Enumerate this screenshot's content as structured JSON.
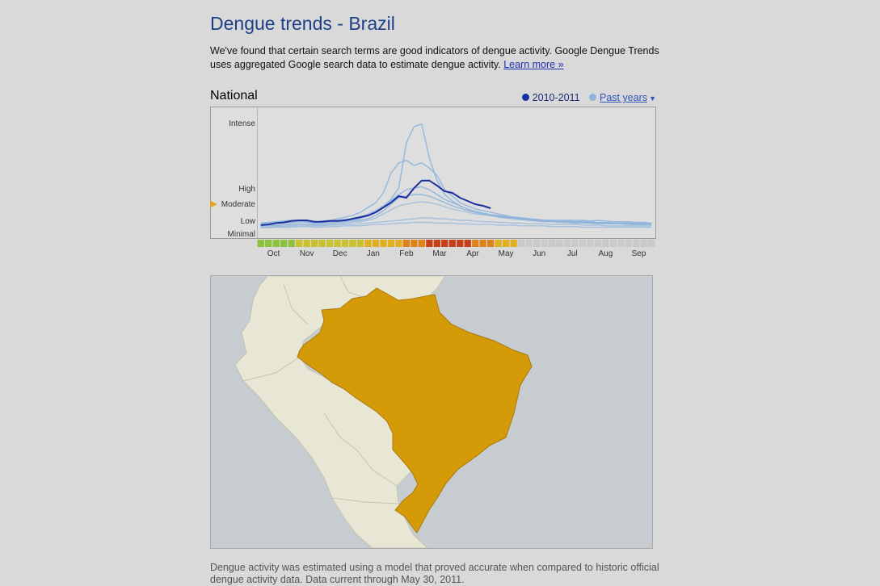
{
  "header": {
    "title": "Dengue trends - Brazil",
    "intro_text": "We've found that certain search terms are good indicators of dengue activity. Google Dengue Trends uses aggregated Google search data to estimate dengue activity.",
    "learn_more": "Learn more »"
  },
  "section": {
    "title": "National"
  },
  "legend": {
    "current_label": "2010-2011",
    "past_label": "Past years",
    "caret": "▼"
  },
  "colors": {
    "current": "#1a2f9e",
    "past": "#8fb4dc",
    "moderate_marker": "#e3a526",
    "brazil_fill": "#d59a08",
    "land": "#e8e6d4",
    "water": "#c6ccd0"
  },
  "chart_data": {
    "type": "line",
    "y_levels": [
      "Minimal",
      "Low",
      "Moderate",
      "High",
      "Intense"
    ],
    "x_months": [
      "Oct",
      "Nov",
      "Dec",
      "Jan",
      "Feb",
      "Mar",
      "Apr",
      "May",
      "Jun",
      "Jul",
      "Aug",
      "Sep"
    ],
    "ylim": [
      0,
      4.5
    ],
    "current_level_marker": "Moderate",
    "series_current": {
      "name": "2010-2011",
      "values": [
        0.65,
        0.7,
        0.8,
        0.85,
        0.95,
        1.0,
        1.0,
        0.9,
        0.9,
        0.95,
        0.95,
        1.0,
        1.1,
        1.2,
        1.3,
        1.5,
        1.8,
        2.1,
        2.5,
        2.4,
        3.0,
        3.3,
        3.3,
        3.1,
        2.8,
        2.7,
        2.4,
        2.2,
        2.0,
        1.9,
        1.75
      ]
    },
    "series_past": [
      {
        "values": [
          0.8,
          0.85,
          0.9,
          0.95,
          1.0,
          1.0,
          0.9,
          0.85,
          0.95,
          1.0,
          1.1,
          1.2,
          1.3,
          1.5,
          1.8,
          2.1,
          2.7,
          3.6,
          4.0,
          4.1,
          3.9,
          4.0,
          3.8,
          3.5,
          2.9,
          2.5,
          2.1,
          1.9,
          1.7,
          1.6,
          1.5,
          1.4,
          1.3,
          1.2,
          1.15,
          1.1,
          1.05,
          1.0,
          1.0,
          1.0,
          1.0,
          1.0,
          1.0,
          0.95,
          1.0,
          0.95,
          0.9,
          0.9,
          0.9,
          0.85,
          0.85,
          0.8
        ]
      },
      {
        "values": [
          0.8,
          0.85,
          0.9,
          0.9,
          0.95,
          0.95,
          0.9,
          0.85,
          0.9,
          0.95,
          1.0,
          1.05,
          1.1,
          1.2,
          1.4,
          1.6,
          1.9,
          2.3,
          3.0,
          4.8,
          5.45,
          5.55,
          4.2,
          3.3,
          2.6,
          2.2,
          1.9,
          1.7,
          1.5,
          1.4,
          1.3,
          1.25,
          1.2,
          1.15,
          1.1,
          1.1,
          1.05,
          1.0,
          1.0,
          0.95,
          0.95,
          0.9,
          0.9,
          0.9,
          0.85,
          0.85,
          0.8,
          0.8,
          0.8,
          0.8,
          0.8,
          0.8
        ]
      },
      {
        "values": [
          0.7,
          0.75,
          0.8,
          0.85,
          0.85,
          0.9,
          0.85,
          0.8,
          0.85,
          0.9,
          0.95,
          1.0,
          1.05,
          1.1,
          1.3,
          1.5,
          1.8,
          2.2,
          2.6,
          2.9,
          3.0,
          3.05,
          2.9,
          2.6,
          2.3,
          2.1,
          1.9,
          1.7,
          1.55,
          1.45,
          1.35,
          1.3,
          1.25,
          1.2,
          1.15,
          1.1,
          1.05,
          1.0,
          1.0,
          0.95,
          0.95,
          0.9,
          0.9,
          0.85,
          0.85,
          0.85,
          0.8,
          0.8,
          0.8,
          0.75,
          0.75,
          0.75
        ]
      },
      {
        "values": [
          0.6,
          0.65,
          0.65,
          0.7,
          0.75,
          0.75,
          0.7,
          0.7,
          0.75,
          0.8,
          0.85,
          0.9,
          0.95,
          1.0,
          1.1,
          1.3,
          1.6,
          2.0,
          2.4,
          2.5,
          2.6,
          2.6,
          2.5,
          2.3,
          2.1,
          1.9,
          1.75,
          1.6,
          1.5,
          1.4,
          1.3,
          1.2,
          1.15,
          1.1,
          1.05,
          1.0,
          0.95,
          0.9,
          0.9,
          0.85,
          0.85,
          0.8,
          0.8,
          0.8,
          0.75,
          0.75,
          0.75,
          0.75,
          0.7,
          0.7,
          0.7,
          0.7
        ]
      },
      {
        "values": [
          0.55,
          0.6,
          0.6,
          0.65,
          0.65,
          0.7,
          0.7,
          0.65,
          0.65,
          0.7,
          0.75,
          0.8,
          0.85,
          0.9,
          1.0,
          1.15,
          1.4,
          1.65,
          1.9,
          2.0,
          2.1,
          2.15,
          2.1,
          2.0,
          1.85,
          1.7,
          1.6,
          1.5,
          1.4,
          1.35,
          1.3,
          1.25,
          1.2,
          1.15,
          1.1,
          1.05,
          1.0,
          0.95,
          0.95,
          0.9,
          0.9,
          0.85,
          0.85,
          0.8,
          0.8,
          0.8,
          0.75,
          0.75,
          0.75,
          0.7,
          0.7,
          0.7
        ]
      },
      {
        "values": [
          0.5,
          0.5,
          0.55,
          0.55,
          0.6,
          0.6,
          0.6,
          0.6,
          0.6,
          0.65,
          0.65,
          0.7,
          0.7,
          0.75,
          0.8,
          0.85,
          0.9,
          0.95,
          1.0,
          1.05,
          1.1,
          1.15,
          1.15,
          1.1,
          1.1,
          1.05,
          1.0,
          1.0,
          0.95,
          0.9,
          0.9,
          0.85,
          0.85,
          0.8,
          0.8,
          0.75,
          0.75,
          0.75,
          0.7,
          0.7,
          0.7,
          0.7,
          0.65,
          0.65,
          0.65,
          0.6,
          0.6,
          0.6,
          0.6,
          0.6,
          0.6,
          0.6
        ]
      },
      {
        "values": [
          0.45,
          0.45,
          0.5,
          0.5,
          0.5,
          0.55,
          0.55,
          0.5,
          0.5,
          0.55,
          0.55,
          0.6,
          0.6,
          0.6,
          0.65,
          0.7,
          0.7,
          0.75,
          0.8,
          0.8,
          0.85,
          0.85,
          0.85,
          0.8,
          0.8,
          0.8,
          0.75,
          0.75,
          0.7,
          0.7,
          0.7,
          0.65,
          0.65,
          0.65,
          0.6,
          0.6,
          0.6,
          0.6,
          0.55,
          0.55,
          0.55,
          0.55,
          0.5,
          0.5,
          0.5,
          0.5,
          0.5,
          0.5,
          0.5,
          0.5,
          0.5,
          0.5
        ]
      }
    ],
    "week_levels": [
      1,
      1,
      1,
      1,
      1,
      2,
      2,
      2,
      2,
      2,
      2,
      2,
      2,
      2,
      3,
      3,
      3,
      3,
      3,
      4,
      4,
      4,
      5,
      5,
      5,
      5,
      5,
      5,
      4,
      4,
      4,
      3,
      3,
      3,
      0,
      0,
      0,
      0,
      0,
      0,
      0,
      0,
      0,
      0,
      0,
      0,
      0,
      0,
      0,
      0,
      0,
      0
    ],
    "week_level_colors": [
      "#c9c9c9",
      "#8dc33a",
      "#c8c22e",
      "#e0b020",
      "#e0821a",
      "#c8401a"
    ]
  },
  "footer": {
    "note": "Dengue activity was estimated using a model that proved accurate when compared to historic official dengue activity data. Data current through May 30, 2011."
  }
}
